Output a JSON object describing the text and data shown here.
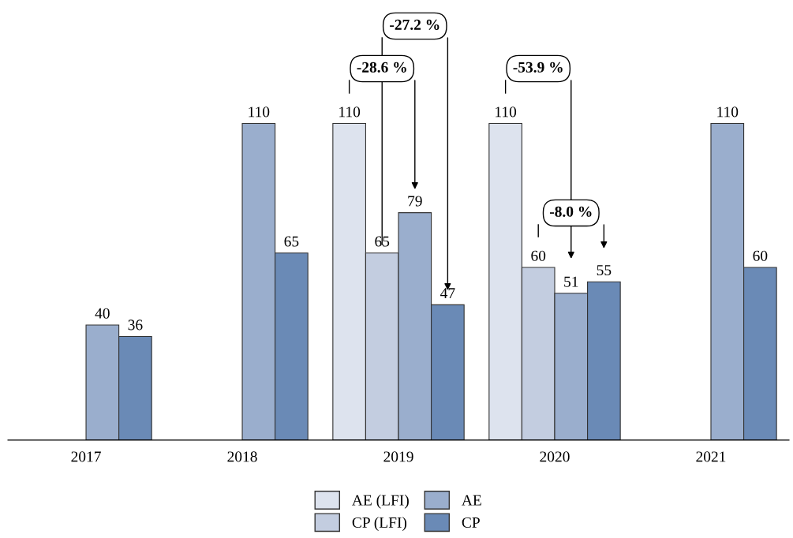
{
  "chart_data": {
    "type": "bar",
    "categories": [
      "2017",
      "2018",
      "2019",
      "2020",
      "2021"
    ],
    "series": [
      {
        "name": "AE (LFI)",
        "color": "#dde3ee",
        "values": [
          null,
          null,
          110,
          110,
          null
        ]
      },
      {
        "name": "CP (LFI)",
        "color": "#c3cde0",
        "values": [
          null,
          null,
          65,
          60,
          null
        ]
      },
      {
        "name": "AE",
        "color": "#9aaecd",
        "values": [
          40,
          110,
          79,
          51,
          110
        ]
      },
      {
        "name": "CP",
        "color": "#6a8ab6",
        "values": [
          36,
          65,
          47,
          55,
          60
        ]
      }
    ],
    "data_labels": true,
    "legend": "bottom",
    "grid": false,
    "annotations": [
      "-27.2 %",
      "-28.6 %",
      "-53.9 %",
      "-8.0 %"
    ]
  }
}
